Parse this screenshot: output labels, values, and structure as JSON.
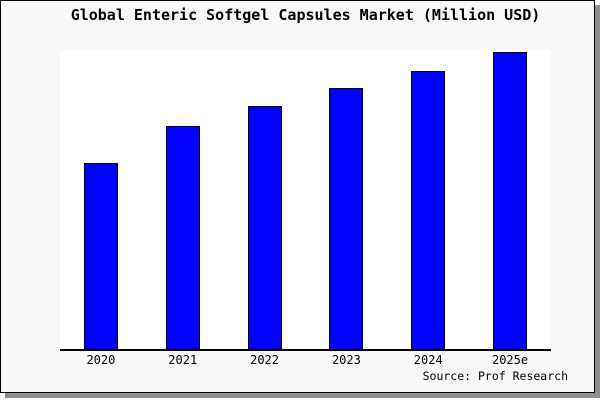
{
  "chart_data": {
    "type": "bar",
    "title": "Global Enteric Softgel Capsules Market (Million USD)",
    "categories": [
      "2020",
      "2021",
      "2022",
      "2023",
      "2024",
      "2025e"
    ],
    "values": [
      62.8,
      75.2,
      81.9,
      87.9,
      93.6,
      100
    ],
    "value_note": "relative heights, percent of 2025e bar; chart displays no y-axis scale",
    "xlabel": "",
    "ylabel": "",
    "ylim": [
      0,
      100.7
    ],
    "grid": false,
    "legend": false,
    "bar_color": "#0101ff",
    "bar_border_color": "#000000",
    "source_note": "Source: Prof Research"
  },
  "colors": {
    "canvas_bg": "#ffffff",
    "frame_bg": "#f8f8f8",
    "plot_bg": "#ffffff",
    "axis": "#000000",
    "text": "#000000",
    "shadow": "#8f8f8f"
  }
}
